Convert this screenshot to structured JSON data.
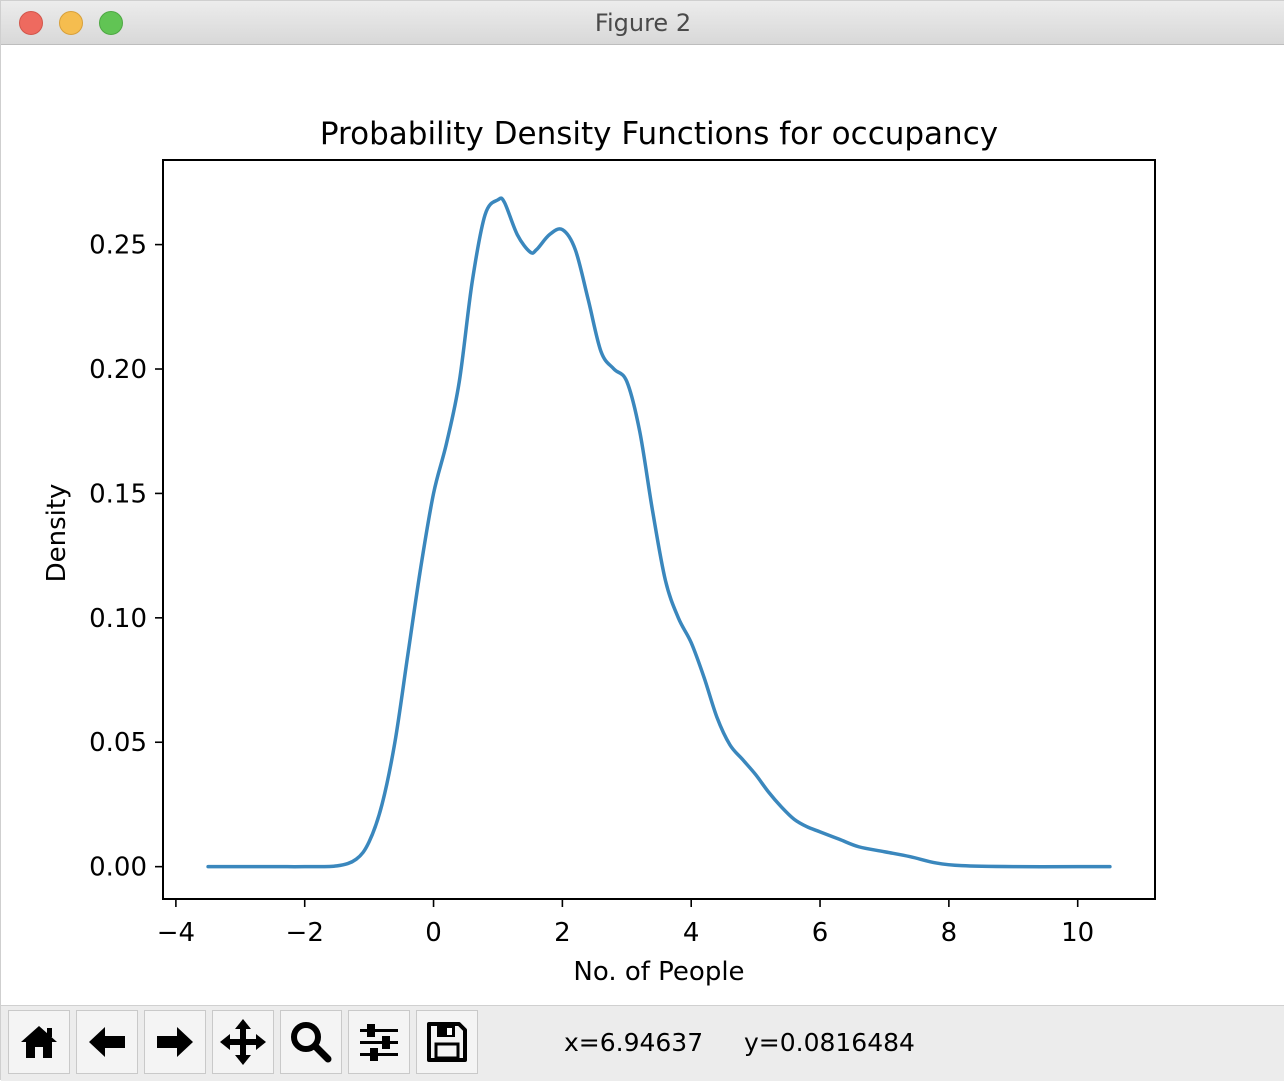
{
  "window": {
    "title": "Figure 2"
  },
  "toolbar": {
    "buttons": [
      {
        "name": "home-button",
        "icon": "home-icon"
      },
      {
        "name": "back-button",
        "icon": "arrow-left-icon"
      },
      {
        "name": "forward-button",
        "icon": "arrow-right-icon"
      },
      {
        "name": "pan-button",
        "icon": "move-icon"
      },
      {
        "name": "zoom-button",
        "icon": "magnifier-icon"
      },
      {
        "name": "configure-subplots-button",
        "icon": "sliders-icon"
      },
      {
        "name": "save-button",
        "icon": "floppy-disk-icon"
      }
    ],
    "x_readout": "x=6.94637",
    "y_readout": "y=0.0816484"
  },
  "chart_data": {
    "type": "line",
    "title": "Probability Density Functions for occupancy",
    "xlabel": "No. of People",
    "ylabel": "Density",
    "xlim": [
      -4.2,
      11.2
    ],
    "ylim": [
      -0.013,
      0.284
    ],
    "xticks": [
      -4,
      -2,
      0,
      2,
      4,
      6,
      8,
      10
    ],
    "xtick_labels": [
      "−4",
      "−2",
      "0",
      "2",
      "4",
      "6",
      "8",
      "10"
    ],
    "yticks": [
      0.0,
      0.05,
      0.1,
      0.15,
      0.2,
      0.25
    ],
    "ytick_labels": [
      "0.00",
      "0.05",
      "0.10",
      "0.15",
      "0.20",
      "0.25"
    ],
    "grid": false,
    "line_color": "#3a87bd",
    "series": [
      {
        "x": [
          -3.5,
          -2.5,
          -2.0,
          -1.5,
          -1.2,
          -1.0,
          -0.8,
          -0.6,
          -0.4,
          -0.2,
          0.0,
          0.2,
          0.4,
          0.6,
          0.8,
          1.0,
          1.1,
          1.3,
          1.5,
          1.6,
          1.8,
          2.0,
          2.2,
          2.4,
          2.6,
          2.8,
          3.0,
          3.2,
          3.4,
          3.6,
          3.8,
          4.0,
          4.2,
          4.4,
          4.6,
          4.8,
          5.0,
          5.2,
          5.4,
          5.6,
          5.8,
          6.0,
          6.3,
          6.6,
          7.0,
          7.4,
          7.8,
          8.2,
          9.0,
          10.0,
          10.5
        ],
        "y": [
          0.0,
          0.0,
          0.0,
          0.0003,
          0.003,
          0.01,
          0.025,
          0.05,
          0.085,
          0.12,
          0.15,
          0.17,
          0.195,
          0.235,
          0.262,
          0.268,
          0.267,
          0.254,
          0.247,
          0.248,
          0.254,
          0.256,
          0.248,
          0.228,
          0.207,
          0.2,
          0.195,
          0.175,
          0.143,
          0.115,
          0.1,
          0.09,
          0.076,
          0.06,
          0.049,
          0.043,
          0.037,
          0.03,
          0.024,
          0.019,
          0.016,
          0.014,
          0.011,
          0.008,
          0.006,
          0.004,
          0.0015,
          0.0004,
          0.0,
          0.0,
          0.0
        ]
      }
    ]
  }
}
